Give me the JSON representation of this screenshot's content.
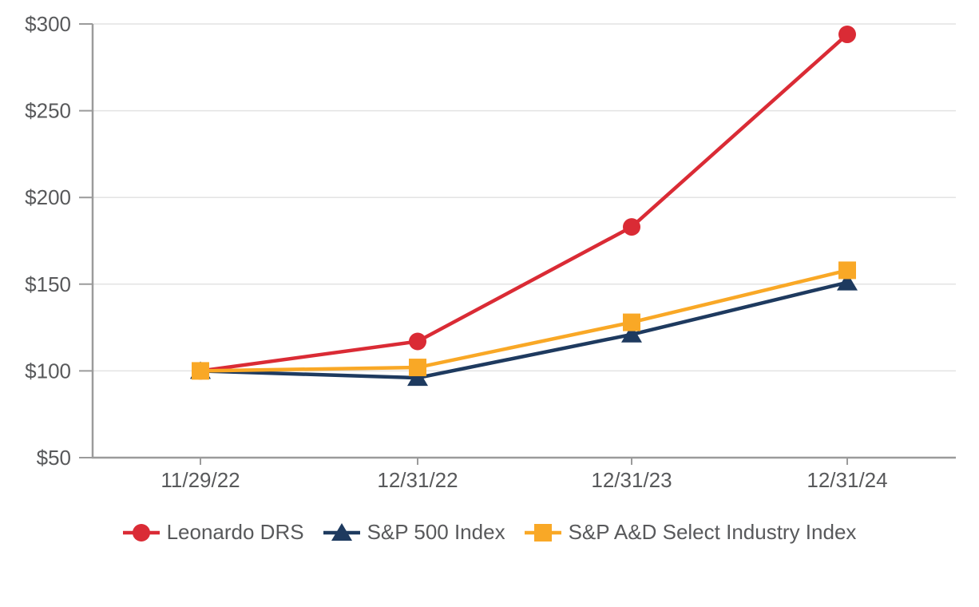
{
  "chart_data": {
    "type": "line",
    "title": "",
    "xlabel": "",
    "ylabel": "",
    "x": [
      "11/29/22",
      "12/31/22",
      "12/31/23",
      "12/31/24"
    ],
    "y_tick_values": [
      50,
      100,
      150,
      200,
      250,
      300
    ],
    "ylim": [
      50,
      300
    ],
    "grid": true,
    "legend_position": "bottom",
    "currency_prefix": "$",
    "series": [
      {
        "name": "Leonardo DRS",
        "marker": "circle",
        "color": "#DA2B35",
        "values": [
          100,
          117,
          183,
          294
        ]
      },
      {
        "name": "S&P 500 Index",
        "marker": "triangle",
        "color": "#1E3A5F",
        "values": [
          100,
          96,
          121,
          151
        ]
      },
      {
        "name": "S&P A&D Select Industry Index",
        "marker": "square",
        "color": "#F9A826",
        "values": [
          100,
          102,
          128,
          158
        ]
      }
    ]
  },
  "colors": {
    "grid": "#E3E3E3",
    "axis": "#9B9B9B",
    "tick_text": "#58595B",
    "background": "#FFFFFF"
  }
}
